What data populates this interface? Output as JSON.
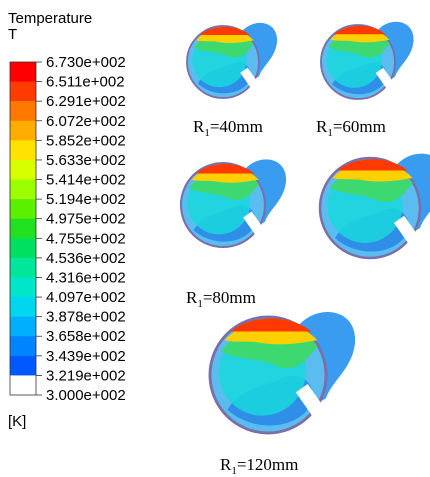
{
  "legend": {
    "title": "Temperature",
    "symbol": "T",
    "unit": "[K]",
    "ticks": [
      "6.730e+002",
      "6.511e+002",
      "6.291e+002",
      "6.072e+002",
      "5.852e+002",
      "5.633e+002",
      "5.414e+002",
      "5.194e+002",
      "4.975e+002",
      "4.755e+002",
      "4.536e+002",
      "4.316e+002",
      "4.097e+002",
      "3.878e+002",
      "3.658e+002",
      "3.439e+002",
      "3.219e+002",
      "3.000e+002"
    ],
    "colors": [
      "#ff0000",
      "#ff3c00",
      "#ff7800",
      "#ffae00",
      "#ffe200",
      "#d8ff00",
      "#9cff00",
      "#5af000",
      "#20e020",
      "#00e060",
      "#00e69a",
      "#00e6c8",
      "#00d6ee",
      "#00b0ff",
      "#0084ff",
      "#0058ff",
      "#ffffff"
    ]
  },
  "panels": [
    {
      "caption": {
        "main": "R",
        "sub": "1",
        "rest": "=40mm"
      }
    },
    {
      "caption": {
        "main": "R",
        "sub": "1",
        "rest": "=60mm"
      }
    },
    {
      "caption": {
        "main": "R",
        "sub": "1",
        "rest": "=80mm"
      }
    },
    {
      "caption": null
    },
    {
      "caption": {
        "main": "R",
        "sub": "1",
        "rest": "=120mm"
      }
    }
  ]
}
